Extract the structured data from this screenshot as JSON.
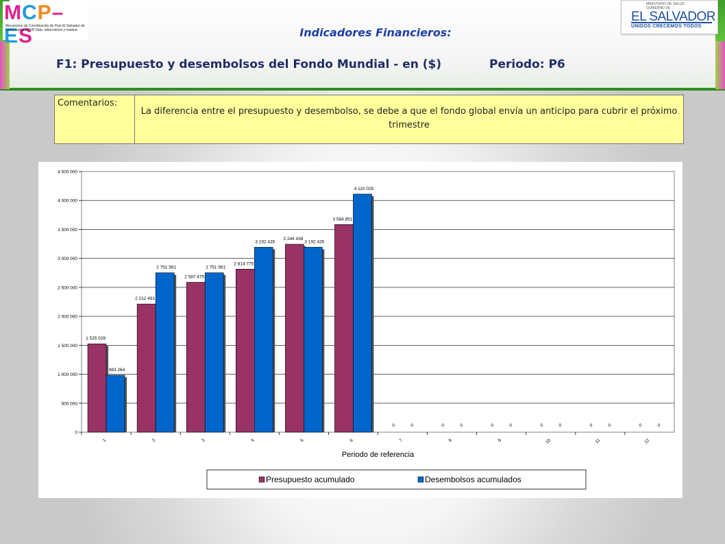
{
  "header": {
    "left_logo_text": "MCP–ES",
    "left_logo_tagline": "Mecanismo de Coordinación de País El Salvador de lucha contra el VIH Sida, tuberculosis y malaria",
    "right_logo_ministry": "MINISTERIO DE SALUD",
    "right_logo_gob": "GOBIERNO DE",
    "right_logo_country": "EL SALVADOR",
    "right_logo_motto": "UNIDOS CRECEMOS TODOS",
    "title": "Indicadores Financieros:",
    "subtitle": "F1: Presupuesto y desembolsos del Fondo Mundial - en ($)",
    "period": "Periodo: P6"
  },
  "comments": {
    "label": "Comentarios:",
    "text": "La diferencia entre el presupuesto y desembolso, se debe a que el fondo global envía un anticipo para cubrir el próximo trimestre"
  },
  "colors": {
    "presupuesto": "#993366",
    "desembolsos": "#0066cc"
  },
  "chart_data": {
    "type": "bar",
    "title": "",
    "xlabel": "Periodo de referencia",
    "ylabel": "",
    "categories": [
      "1",
      "2",
      "3",
      "4",
      "5",
      "6",
      "7",
      "8",
      "9",
      "10",
      "11",
      "12"
    ],
    "ylim": [
      0,
      4500000
    ],
    "yticks": [
      "0",
      "500 000",
      "1 000 000",
      "1 500 000",
      "2 000 000",
      "2 500 000",
      "3 000 000",
      "3 500 000",
      "4 000 000",
      "4 500 000"
    ],
    "grid": true,
    "legend_position": "bottom",
    "series": [
      {
        "name": "Presupuesto acumulado",
        "values": [
          1525028,
          2212491,
          2587475,
          2814775,
          3244438,
          3584851,
          0,
          0,
          0,
          0,
          0,
          0
        ],
        "labels": [
          "1 525 028",
          "2 212 491",
          "2 587 475",
          "2 814 775",
          "3 244 438",
          "3 584 851",
          "0",
          "0",
          "0",
          "0",
          "0",
          "0"
        ]
      },
      {
        "name": "Desembolsos acumulados",
        "values": [
          983264,
          2751561,
          2751561,
          3192435,
          3192435,
          4110029,
          0,
          0,
          0,
          0,
          0,
          0
        ],
        "labels": [
          "983 264",
          "2 751 561",
          "2 751 561",
          "3 192 435",
          "3 192 435",
          "4 110 029",
          "0",
          "0",
          "0",
          "0",
          "0",
          "0"
        ]
      }
    ]
  }
}
